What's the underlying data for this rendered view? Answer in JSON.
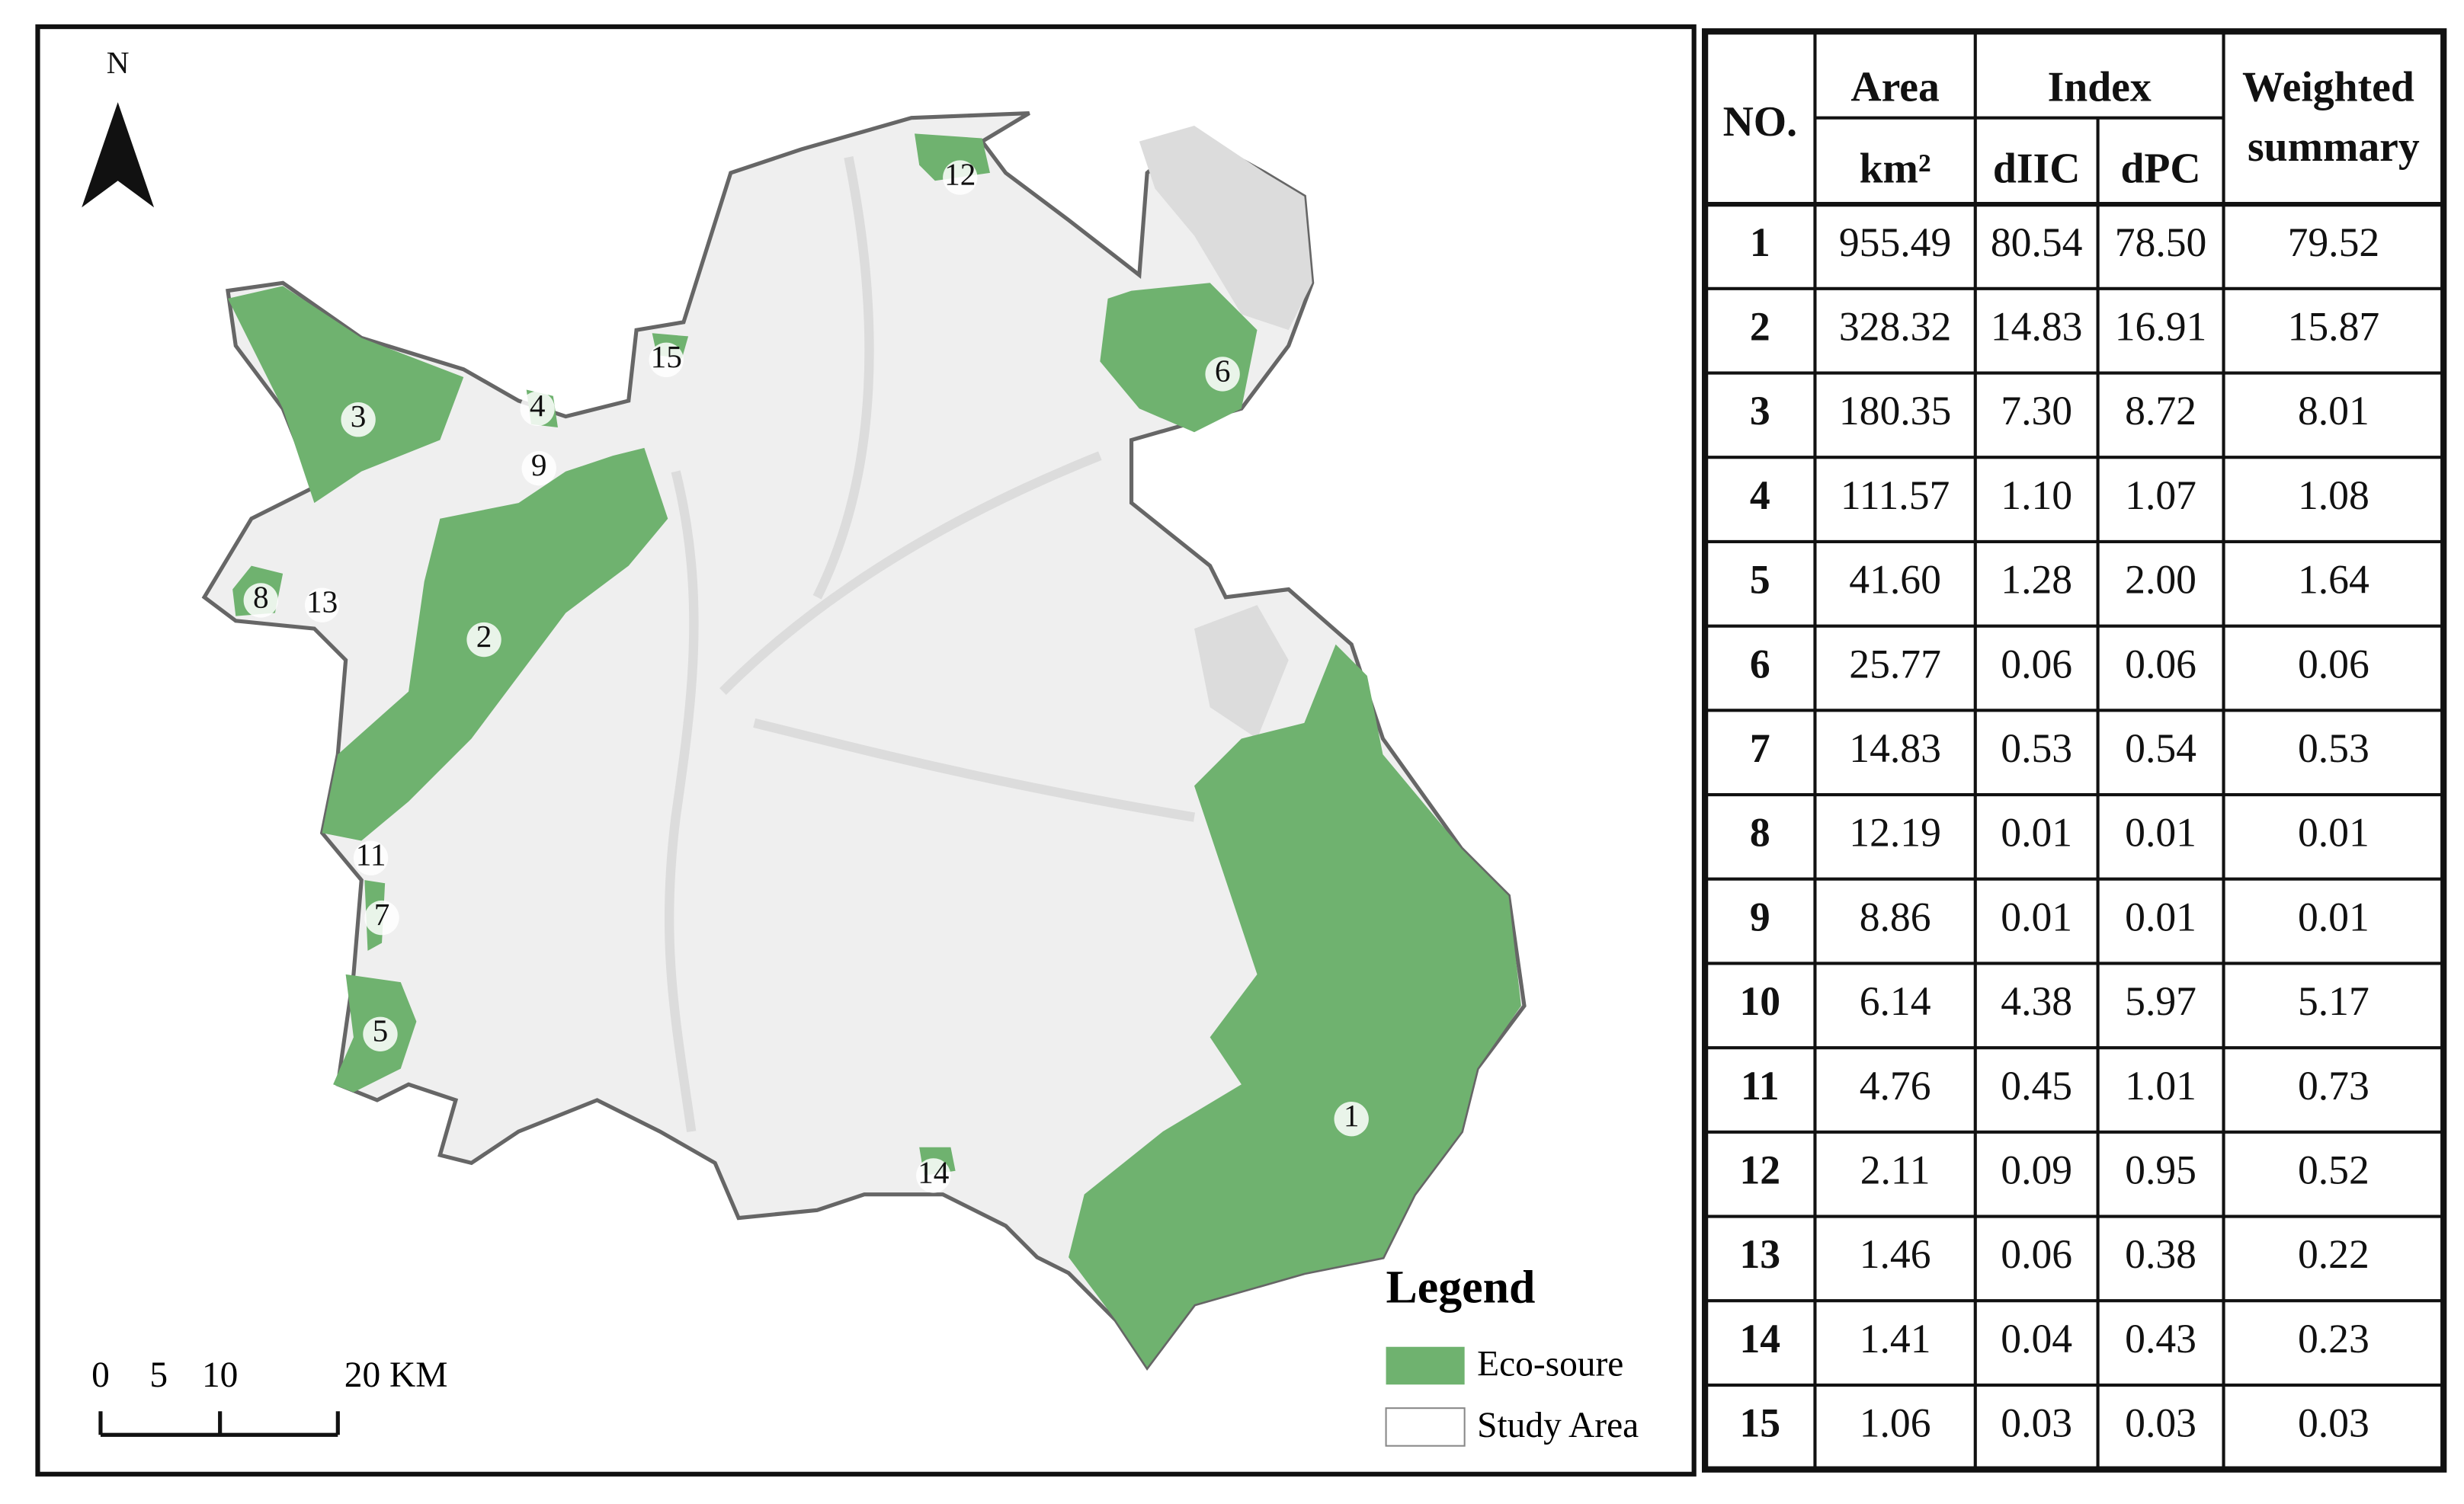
{
  "map": {
    "north": "N",
    "scale_labels": [
      "0",
      "5",
      "10",
      "20 KM"
    ],
    "legend": {
      "title": "Legend",
      "items": [
        "Eco-soure",
        "Study Area"
      ]
    },
    "source_labels": [
      "1",
      "2",
      "3",
      "4",
      "5",
      "6",
      "7",
      "8",
      "9",
      "11",
      "12",
      "13",
      "14",
      "15"
    ]
  },
  "table": {
    "header": {
      "no": "NO.",
      "area": "Area",
      "area_unit": "km²",
      "index": "Index",
      "diic": "dIIC",
      "dpc": "dPC",
      "weighted": "Weighted summary"
    },
    "rows": [
      [
        "1",
        "955.49",
        "80.54",
        "78.50",
        "79.52"
      ],
      [
        "2",
        "328.32",
        "14.83",
        "16.91",
        "15.87"
      ],
      [
        "3",
        "180.35",
        "7.30",
        "8.72",
        "8.01"
      ],
      [
        "4",
        "111.57",
        "1.10",
        "1.07",
        "1.08"
      ],
      [
        "5",
        "41.60",
        "1.28",
        "2.00",
        "1.64"
      ],
      [
        "6",
        "25.77",
        "0.06",
        "0.06",
        "0.06"
      ],
      [
        "7",
        "14.83",
        "0.53",
        "0.54",
        "0.53"
      ],
      [
        "8",
        "12.19",
        "0.01",
        "0.01",
        "0.01"
      ],
      [
        "9",
        "8.86",
        "0.01",
        "0.01",
        "0.01"
      ],
      [
        "10",
        "6.14",
        "4.38",
        "5.97",
        "5.17"
      ],
      [
        "11",
        "4.76",
        "0.45",
        "1.01",
        "0.73"
      ],
      [
        "12",
        "2.11",
        "0.09",
        "0.95",
        "0.52"
      ],
      [
        "13",
        "1.46",
        "0.06",
        "0.38",
        "0.22"
      ],
      [
        "14",
        "1.41",
        "0.04",
        "0.43",
        "0.23"
      ],
      [
        "15",
        "1.06",
        "0.03",
        "0.03",
        "0.03"
      ]
    ]
  }
}
